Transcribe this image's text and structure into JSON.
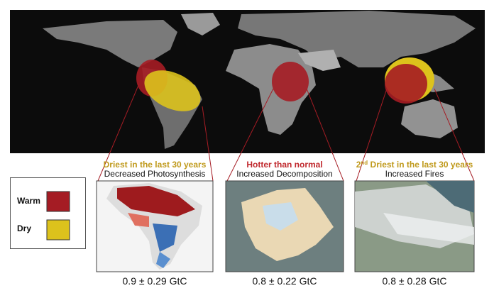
{
  "legend": {
    "items": [
      {
        "label": "Warm",
        "color": "#a51c24"
      },
      {
        "label": "Dry",
        "color": "#dcc21c"
      }
    ]
  },
  "panels": [
    {
      "heading": "Driest in the last 30 years",
      "heading_color": "#c09a1c",
      "subheading": "Decreased Photosynthesis",
      "value": "0.9 ± 0.29 GtC"
    },
    {
      "heading": "Hotter than normal",
      "heading_color": "#c0282d",
      "subheading": "Increased Decomposition",
      "value": "0.8 ± 0.22 GtC"
    },
    {
      "heading_parts": {
        "number": "2",
        "suffix": "nd",
        "rest": " Driest in the last 30 years"
      },
      "heading_color": "#c09a1c",
      "subheading": "Increased Fires",
      "value": "0.8 ± 0.28 GtC"
    }
  ]
}
